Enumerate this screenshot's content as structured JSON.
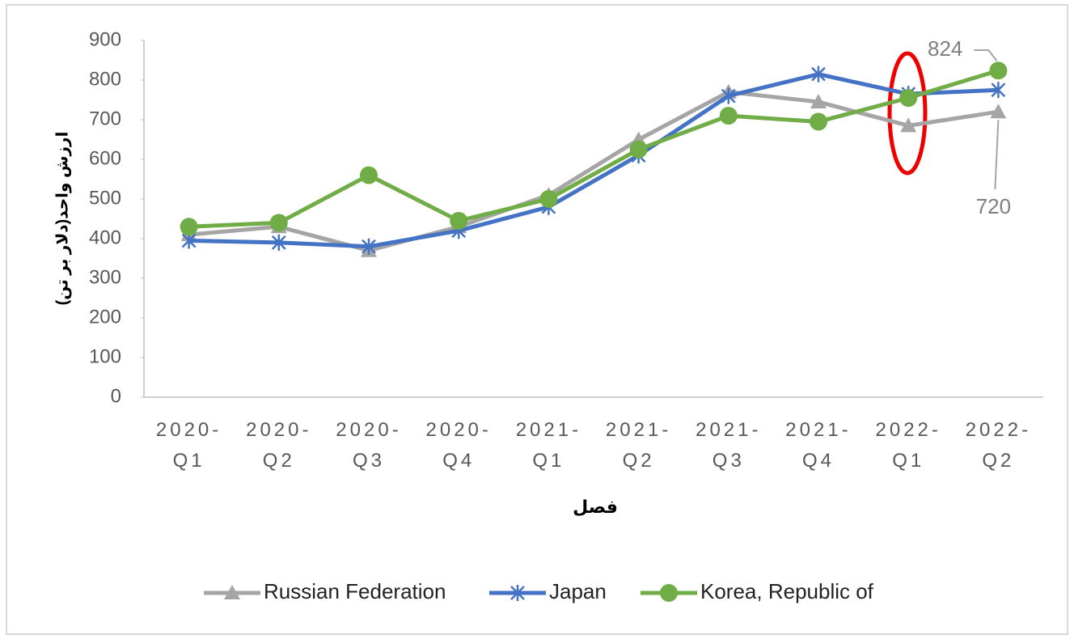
{
  "chart_data": {
    "type": "line",
    "xlabel": "فصل",
    "ylabel": "ارزش واحد(دلار بر تن)",
    "categories": [
      "2020-Q1",
      "2020-Q2",
      "2020-Q3",
      "2020-Q4",
      "2021-Q1",
      "2021-Q2",
      "2021-Q3",
      "2021-Q4",
      "2022-Q1",
      "2022-Q2"
    ],
    "series": [
      {
        "name": "Russian Federation",
        "color": "#a5a5a5",
        "marker": "triangle",
        "values": [
          410,
          430,
          370,
          430,
          510,
          650,
          770,
          745,
          685,
          720
        ]
      },
      {
        "name": "Japan",
        "color": "#4472c4",
        "marker": "star",
        "values": [
          395,
          390,
          380,
          420,
          480,
          610,
          760,
          815,
          765,
          775
        ]
      },
      {
        "name": "Korea, Republic of",
        "color": "#70ad47",
        "marker": "circle",
        "values": [
          430,
          440,
          560,
          445,
          500,
          625,
          710,
          695,
          755,
          824
        ]
      }
    ],
    "ylim": [
      0,
      900
    ],
    "yticks": [
      0,
      100,
      200,
      300,
      400,
      500,
      600,
      700,
      800,
      900
    ],
    "grid": false,
    "legend": "bottom"
  }
}
